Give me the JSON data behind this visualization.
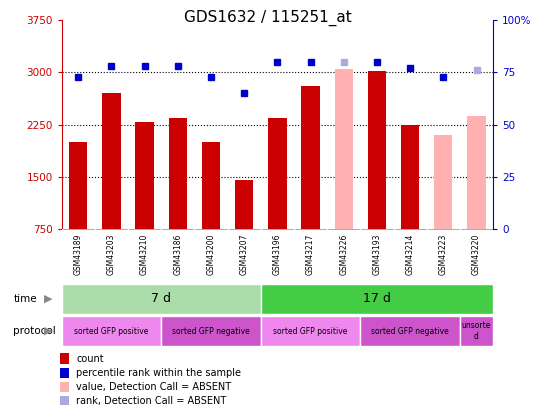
{
  "title": "GDS1632 / 115251_at",
  "samples": [
    "GSM43189",
    "GSM43203",
    "GSM43210",
    "GSM43186",
    "GSM43200",
    "GSM43207",
    "GSM43196",
    "GSM43217",
    "GSM43226",
    "GSM43193",
    "GSM43214",
    "GSM43223",
    "GSM43220"
  ],
  "bar_values": [
    2000,
    2700,
    2280,
    2350,
    2000,
    1450,
    2350,
    2800,
    3050,
    3020,
    2250,
    2100,
    2370
  ],
  "bar_colors": [
    "#cc0000",
    "#cc0000",
    "#cc0000",
    "#cc0000",
    "#cc0000",
    "#cc0000",
    "#cc0000",
    "#cc0000",
    "#ffb0b0",
    "#cc0000",
    "#cc0000",
    "#ffb0b0",
    "#ffb0b0"
  ],
  "rank_values": [
    73,
    78,
    78,
    78,
    73,
    65,
    80,
    80,
    80,
    80,
    77,
    73,
    76
  ],
  "rank_colors": [
    "#0000cc",
    "#0000cc",
    "#0000cc",
    "#0000cc",
    "#0000cc",
    "#0000cc",
    "#0000cc",
    "#0000cc",
    "#aaaadd",
    "#0000cc",
    "#0000cc",
    "#0000cc",
    "#aaaadd"
  ],
  "ylim_left": [
    750,
    3750
  ],
  "ylim_right": [
    0,
    100
  ],
  "yticks_left": [
    750,
    1500,
    2250,
    3000,
    3750
  ],
  "yticks_right": [
    0,
    25,
    50,
    75,
    100
  ],
  "ytick_labels_right": [
    "0",
    "25",
    "50",
    "75",
    "100%"
  ],
  "hlines": [
    1500,
    2250,
    3000
  ],
  "time_groups": [
    {
      "label": "7 d",
      "start": 0,
      "end": 6,
      "color": "#aaddaa"
    },
    {
      "label": "17 d",
      "start": 6,
      "end": 13,
      "color": "#44cc44"
    }
  ],
  "protocol_groups": [
    {
      "label": "sorted GFP positive",
      "start": 0,
      "end": 3,
      "color": "#ee88ee"
    },
    {
      "label": "sorted GFP negative",
      "start": 3,
      "end": 6,
      "color": "#cc55cc"
    },
    {
      "label": "sorted GFP positive",
      "start": 6,
      "end": 9,
      "color": "#ee88ee"
    },
    {
      "label": "sorted GFP negative",
      "start": 9,
      "end": 12,
      "color": "#cc55cc"
    },
    {
      "label": "unsorte\nd",
      "start": 12,
      "end": 13,
      "color": "#cc55cc"
    }
  ],
  "legend_items": [
    {
      "label": "count",
      "color": "#cc0000"
    },
    {
      "label": "percentile rank within the sample",
      "color": "#0000cc"
    },
    {
      "label": "value, Detection Call = ABSENT",
      "color": "#ffb0b0"
    },
    {
      "label": "rank, Detection Call = ABSENT",
      "color": "#aaaadd"
    }
  ],
  "left_axis_color": "#cc0000",
  "right_axis_color": "#0000cc",
  "bg_color": "#ffffff",
  "title_fontsize": 11,
  "tick_fontsize": 7.5,
  "bar_width": 0.55
}
